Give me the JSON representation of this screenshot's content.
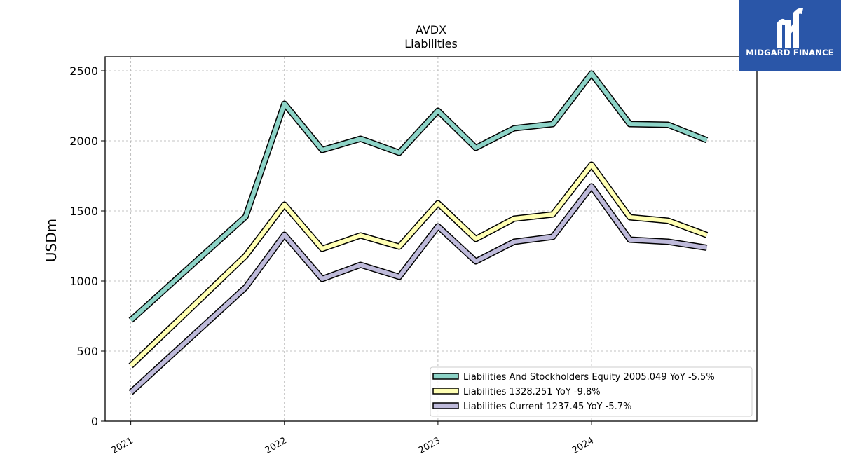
{
  "chart_data": {
    "type": "line",
    "title": "AVDX",
    "subtitle": "Liabilities",
    "xlabel": "",
    "ylabel": "USDm",
    "ylim": [
      0,
      2600
    ],
    "xlim": [
      "2020-11-01",
      "2025-01-28"
    ],
    "yticks": [
      0,
      500,
      1000,
      1500,
      2000,
      2500
    ],
    "xticks": [
      "2021",
      "2022",
      "2023",
      "2024"
    ],
    "grid": true,
    "legend_position": "lower-right",
    "x": [
      "2021-01-01",
      "2021-10-01",
      "2022-01-01",
      "2022-04-01",
      "2022-07-01",
      "2022-10-01",
      "2023-01-01",
      "2023-04-01",
      "2023-07-01",
      "2023-10-01",
      "2024-01-01",
      "2024-04-01",
      "2024-07-01",
      "2024-10-01"
    ],
    "series": [
      {
        "name": "Liabilities And Stockholders Equity",
        "legend": "Liabilities And Stockholders Equity  2005.049 YoY -5.5%",
        "color": "#8dd3c7",
        "values": [
          720,
          1460,
          2265,
          1935,
          2015,
          1915,
          2215,
          1950,
          2090,
          2120,
          2480,
          2120,
          2115,
          2005
        ]
      },
      {
        "name": "Liabilities",
        "legend": "Liabilities  1328.251 YoY -9.8%",
        "color": "#ffffb3",
        "values": [
          395,
          1180,
          1545,
          1230,
          1325,
          1245,
          1555,
          1300,
          1445,
          1475,
          1830,
          1455,
          1430,
          1328
        ]
      },
      {
        "name": "Liabilities Current",
        "legend": "Liabilities Current  1237.45 YoY -5.7%",
        "color": "#bebada",
        "values": [
          205,
          955,
          1330,
          1015,
          1115,
          1030,
          1390,
          1140,
          1280,
          1315,
          1675,
          1295,
          1280,
          1237
        ]
      }
    ]
  },
  "logo": {
    "text": "MIDGARD FINANCE",
    "bg_color": "#2a56a8"
  }
}
